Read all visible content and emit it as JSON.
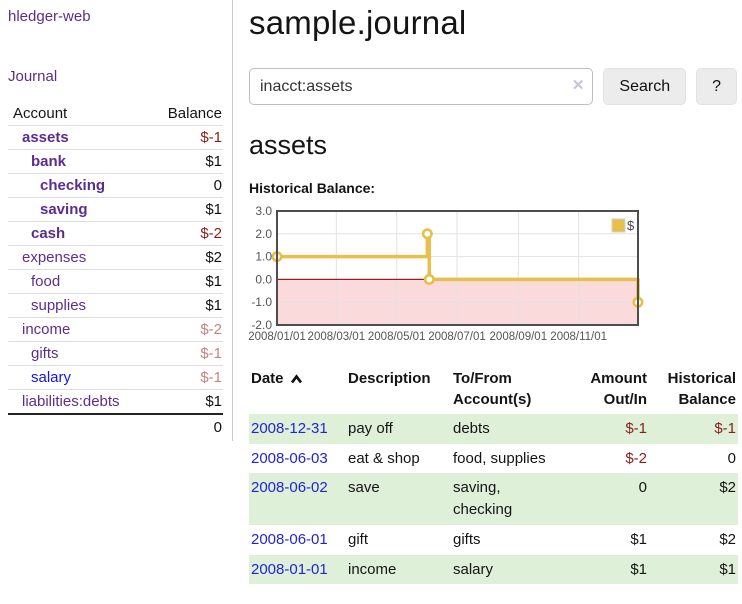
{
  "app": {
    "title": "hledger-web"
  },
  "sidebar": {
    "journal_label": "Journal",
    "accounts": {
      "header_account": "Account",
      "header_balance": "Balance",
      "rows": [
        {
          "name": "assets",
          "balance": "$-1"
        },
        {
          "name": "bank",
          "balance": "$1"
        },
        {
          "name": "checking",
          "balance": "0"
        },
        {
          "name": "saving",
          "balance": "$1"
        },
        {
          "name": "cash",
          "balance": "$-2"
        },
        {
          "name": "expenses",
          "balance": "$2"
        },
        {
          "name": "food",
          "balance": "$1"
        },
        {
          "name": "supplies",
          "balance": "$1"
        },
        {
          "name": "income",
          "balance": "$-2"
        },
        {
          "name": "gifts",
          "balance": "$-1"
        },
        {
          "name": "salary",
          "balance": "$-1"
        },
        {
          "name": "liabilities:debts",
          "balance": "$1"
        }
      ],
      "total": "0"
    }
  },
  "main": {
    "title": "sample.journal",
    "search": {
      "value": "inacct:assets",
      "clear_icon": "✕",
      "button_label": "Search",
      "help_label": "?"
    },
    "account_heading": "assets",
    "chart_label": "Historical Balance:",
    "register": {
      "headers": {
        "date": "Date",
        "description": "Description",
        "tofrom": "To/From\nAccount(s)",
        "amount": "Amount\nOut/In",
        "balance": "Historical\nBalance"
      },
      "rows": [
        {
          "date": "2008-12-31",
          "description": "pay off",
          "tofrom": "debts",
          "amount": "$-1",
          "balance": "$-1"
        },
        {
          "date": "2008-06-03",
          "description": "eat & shop",
          "tofrom": "food, supplies",
          "amount": "$-2",
          "balance": "0"
        },
        {
          "date": "2008-06-02",
          "description": "save",
          "tofrom": "saving,\nchecking",
          "amount": "0",
          "balance": "$2"
        },
        {
          "date": "2008-06-01",
          "description": "gift",
          "tofrom": "gifts",
          "amount": "$1",
          "balance": "$2"
        },
        {
          "date": "2008-01-01",
          "description": "income",
          "tofrom": "salary",
          "amount": "$1",
          "balance": "$1"
        }
      ]
    }
  },
  "colors": {
    "link_purple": "#5c2d91",
    "link_blue": "#1515e6",
    "date_blue": "#2222dd",
    "negative_strong": "#8c1c1c",
    "negative_light": "#c98282",
    "row_green": "#dff0d8"
  },
  "chart_data": {
    "type": "line",
    "step": true,
    "title": "Historical Balance:",
    "series": [
      {
        "name": "$",
        "color": "#e6c04a",
        "points": [
          {
            "date": "2008-01-01",
            "day": 0,
            "value": 1
          },
          {
            "date": "2008-06-01",
            "day": 152,
            "value": 2
          },
          {
            "date": "2008-06-03",
            "day": 154,
            "value": 0
          },
          {
            "date": "2008-12-31",
            "day": 365,
            "value": -1
          }
        ]
      }
    ],
    "x_tick_labels": [
      "2008/01/01",
      "2008/03/01",
      "2008/05/01",
      "2008/07/01",
      "2008/09/01",
      "2008/11/01"
    ],
    "x_tick_days": [
      0,
      60,
      121,
      182,
      244,
      305
    ],
    "y_tick_labels": [
      "3.0",
      "2.0",
      "1.0",
      "0.0",
      "-1.0",
      "-2.0"
    ],
    "ylim": [
      -2,
      3
    ],
    "xlim_days": [
      0,
      365
    ],
    "negative_fill": "#fadada",
    "zero_line_color": "#9c1b1b",
    "grid_color": "#e2e2e2",
    "border_color": "#4d4d4d",
    "legend": {
      "label": "$",
      "position": "top-right"
    }
  }
}
